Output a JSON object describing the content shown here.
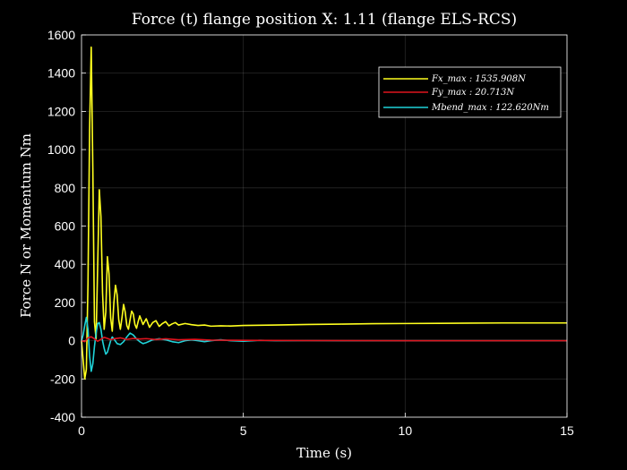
{
  "chart_data": {
    "type": "line",
    "title": "Force (t) flange position X: 1.11 (flange ELS-RCS)",
    "xlabel": "Time (s)",
    "ylabel": "Force N or Momentum Nm",
    "xlim": [
      0,
      15
    ],
    "ylim": [
      -400,
      1600
    ],
    "xticks": [
      0,
      5,
      10,
      15
    ],
    "yticks": [
      -400,
      -200,
      0,
      200,
      400,
      600,
      800,
      1000,
      1200,
      1400,
      1600
    ],
    "grid": true,
    "legend_position": "top-right",
    "series": [
      {
        "name": "Fx_max : 1535.908N",
        "color": "#ffff1f",
        "x": [
          0,
          0.05,
          0.1,
          0.15,
          0.2,
          0.25,
          0.3,
          0.35,
          0.4,
          0.45,
          0.5,
          0.55,
          0.6,
          0.65,
          0.7,
          0.75,
          0.8,
          0.85,
          0.9,
          0.95,
          1.0,
          1.05,
          1.1,
          1.15,
          1.2,
          1.25,
          1.3,
          1.35,
          1.4,
          1.45,
          1.5,
          1.55,
          1.6,
          1.65,
          1.7,
          1.75,
          1.8,
          1.9,
          2.0,
          2.1,
          2.2,
          2.3,
          2.4,
          2.5,
          2.6,
          2.7,
          2.8,
          2.9,
          3.0,
          3.2,
          3.4,
          3.6,
          3.8,
          4.0,
          4.3,
          4.6,
          5.0,
          6.0,
          7.0,
          8.0,
          9.0,
          10.0,
          11.0,
          12.0,
          13.0,
          14.0,
          15.0
        ],
        "y": [
          0,
          -100,
          -200,
          -150,
          300,
          1100,
          1536,
          900,
          100,
          10,
          400,
          790,
          650,
          250,
          60,
          150,
          440,
          350,
          120,
          50,
          200,
          290,
          240,
          110,
          60,
          120,
          190,
          150,
          80,
          60,
          110,
          155,
          140,
          85,
          65,
          100,
          130,
          85,
          115,
          70,
          95,
          105,
          75,
          90,
          100,
          78,
          88,
          95,
          82,
          90,
          84,
          80,
          82,
          76,
          78,
          77,
          80,
          82,
          85,
          87,
          89,
          90,
          91,
          92,
          93,
          93,
          93
        ]
      },
      {
        "name": "Fy_max : 20.713N",
        "color": "#e0141e",
        "x": [
          0,
          0.1,
          0.2,
          0.3,
          0.4,
          0.5,
          0.6,
          0.7,
          0.8,
          0.9,
          1.0,
          1.2,
          1.4,
          1.6,
          1.8,
          2.0,
          2.3,
          2.6,
          3.0,
          3.5,
          4.0,
          5.0,
          7.0,
          10.0,
          15.0
        ],
        "y": [
          0,
          -5,
          15,
          20.7,
          10,
          -3,
          8,
          18,
          12,
          5,
          10,
          15,
          7,
          12,
          9,
          11,
          6,
          10,
          5,
          7,
          3,
          2,
          1,
          0,
          0
        ]
      },
      {
        "name": "Mbend_max : 122.620Nm",
        "color": "#1fd3d9",
        "x": [
          0,
          0.05,
          0.1,
          0.15,
          0.2,
          0.25,
          0.3,
          0.35,
          0.4,
          0.45,
          0.5,
          0.55,
          0.6,
          0.65,
          0.7,
          0.75,
          0.8,
          0.85,
          0.9,
          0.95,
          1.0,
          1.1,
          1.2,
          1.3,
          1.4,
          1.5,
          1.6,
          1.7,
          1.8,
          1.9,
          2.0,
          2.2,
          2.4,
          2.6,
          2.8,
          3.0,
          3.2,
          3.4,
          3.6,
          3.8,
          4.0,
          4.3,
          4.6,
          5.0,
          5.5,
          6.0,
          7.0,
          8.0,
          10.0,
          12.0,
          15.0
        ],
        "y": [
          0,
          30,
          80,
          122,
          60,
          -80,
          -160,
          -120,
          -30,
          40,
          90,
          95,
          60,
          0,
          -40,
          -70,
          -60,
          -30,
          0,
          20,
          10,
          -15,
          -20,
          -5,
          20,
          40,
          30,
          10,
          -5,
          -15,
          -10,
          5,
          10,
          5,
          -5,
          -10,
          0,
          5,
          0,
          -5,
          0,
          5,
          0,
          -3,
          2,
          0,
          1,
          0,
          0,
          0,
          0
        ]
      }
    ]
  }
}
